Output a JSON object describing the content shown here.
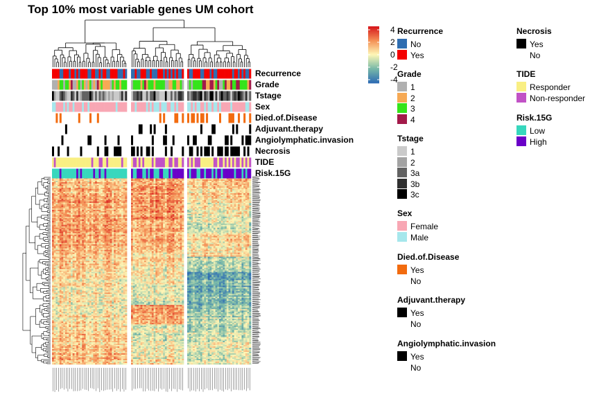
{
  "title": "Top 10% most variable genes UM cohort",
  "chart_data": {
    "type": "heatmap",
    "title": "Top 10% most variable genes UM cohort",
    "color_scale": {
      "breaks": [
        -4,
        -2,
        0,
        2,
        4
      ],
      "colors": [
        "#2f6db4",
        "#79b9a8",
        "#fef7b7",
        "#f49156",
        "#d7191c"
      ],
      "tick_labels": [
        "4",
        "2",
        "0",
        "-2",
        "-4"
      ]
    },
    "column_clusters": 3,
    "annotation_rows": [
      "Recurrence",
      "Grade",
      "Tstage",
      "Sex",
      "Died.of.Disease",
      "Adjuvant.therapy",
      "Angiolymphatic.invasion",
      "Necrosis",
      "TIDE",
      "Risk.15G"
    ]
  },
  "legends": [
    {
      "title": "Recurrence",
      "items": [
        {
          "label": "No",
          "color": "#2f6db0"
        },
        {
          "label": "Yes",
          "color": "#f40000"
        }
      ]
    },
    {
      "title": "Grade",
      "items": [
        {
          "label": "1",
          "color": "#b0b0b0"
        },
        {
          "label": "2",
          "color": "#f6a954"
        },
        {
          "label": "3",
          "color": "#35e41b"
        },
        {
          "label": "4",
          "color": "#a31a4a"
        }
      ]
    },
    {
      "title": "Tstage",
      "items": [
        {
          "label": "1",
          "color": "#cacaca"
        },
        {
          "label": "2",
          "color": "#a3a3a3"
        },
        {
          "label": "3a",
          "color": "#626262"
        },
        {
          "label": "3b",
          "color": "#2f2f2f"
        },
        {
          "label": "3c",
          "color": "#000000"
        }
      ]
    },
    {
      "title": "Sex",
      "items": [
        {
          "label": "Female",
          "color": "#f8a7b4"
        },
        {
          "label": "Male",
          "color": "#a6e7ec"
        }
      ]
    },
    {
      "title": "Died.of.Disease",
      "items": [
        {
          "label": "Yes",
          "color": "#f26b0f"
        },
        {
          "label": "No",
          "color": ""
        }
      ]
    },
    {
      "title": "Adjuvant.therapy",
      "items": [
        {
          "label": "Yes",
          "color": "#000000"
        },
        {
          "label": "No",
          "color": ""
        }
      ]
    },
    {
      "title": "Angiolymphatic.invasion",
      "items": [
        {
          "label": "Yes",
          "color": "#000000"
        },
        {
          "label": "No",
          "color": ""
        }
      ]
    },
    {
      "title": "Necrosis",
      "items": [
        {
          "label": "Yes",
          "color": "#000000"
        },
        {
          "label": "No",
          "color": ""
        }
      ]
    },
    {
      "title": "TIDE",
      "items": [
        {
          "label": "Responder",
          "color": "#f9ef83"
        },
        {
          "label": "Non-responder",
          "color": "#c152c6"
        }
      ]
    },
    {
      "title": "Risk.15G",
      "items": [
        {
          "label": "Low",
          "color": "#37d7bd"
        },
        {
          "label": "High",
          "color": "#6a00c8"
        }
      ]
    }
  ]
}
